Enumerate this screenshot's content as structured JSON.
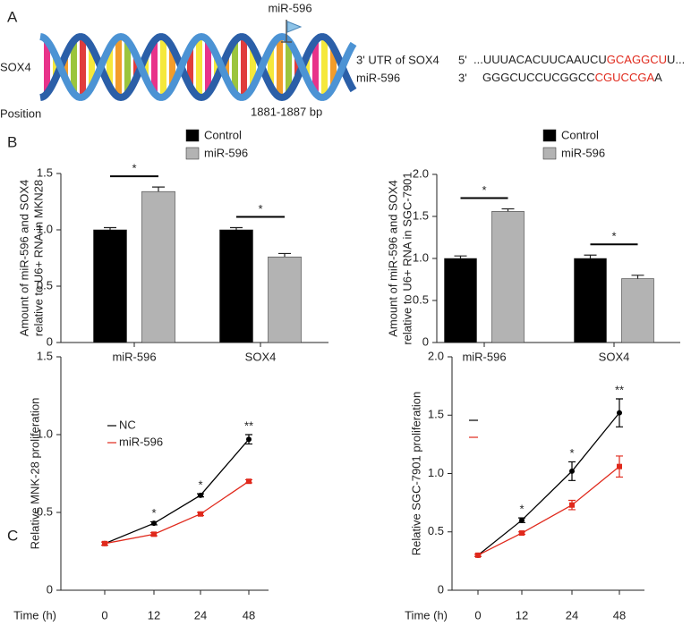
{
  "panel_labels": [
    "A",
    "B",
    "C"
  ],
  "panel_a": {
    "mirna_marker": "miR-596",
    "gene": "SOX4",
    "position_label": "Position",
    "position": "1881-1887 bp",
    "utr_label": "3' UTR of SOX4",
    "utr_end": "5'",
    "utr_seq": [
      "...UUUACACUUCAAUCU",
      "GCAGGCU",
      "U..."
    ],
    "mirna_label": "miR-596",
    "mirna_end": "3'",
    "mirna_seq": [
      "GGGCUCCUCGGCC",
      "CGUCCGA",
      "A"
    ]
  },
  "chart_data": [
    {
      "type": "bar",
      "ylabel": [
        "Amount of miR-596 and SOX4",
        "relative to U6+ RNA in MKN28"
      ],
      "categories": [
        "miR-596",
        "SOX4"
      ],
      "series": [
        {
          "name": "Control",
          "color": "#000000",
          "values": [
            1.0,
            1.0
          ],
          "errors": [
            0.02,
            0.02
          ]
        },
        {
          "name": "miR-596",
          "color": "#b3b3b3",
          "values": [
            1.34,
            0.76
          ],
          "errors": [
            0.04,
            0.03
          ]
        }
      ],
      "significance": [
        "*",
        "*"
      ],
      "ylim": [
        0,
        1.5
      ],
      "yticks": [
        0,
        0.5,
        {
          "value": 1,
          "label": "1.0"
        },
        1.5
      ]
    },
    {
      "type": "bar",
      "ylabel": [
        "Amount of miR-596 and SOX4",
        "relative to U6+ RNA in SGC-7901"
      ],
      "categories": [
        "miR-596",
        "SOX4"
      ],
      "series": [
        {
          "name": "Control",
          "color": "#000000",
          "values": [
            1.0,
            1.0
          ],
          "errors": [
            0.03,
            0.04
          ]
        },
        {
          "name": "miR-596",
          "color": "#b3b3b3",
          "values": [
            1.56,
            0.76
          ],
          "errors": [
            0.03,
            0.04
          ]
        }
      ],
      "significance": [
        "*",
        "*"
      ],
      "ylim": [
        0,
        2
      ],
      "yticks": [
        0,
        0.5,
        {
          "value": 1,
          "label": "1.0"
        },
        1.5,
        {
          "value": 2,
          "label": "2.0"
        }
      ]
    },
    {
      "type": "line",
      "ylabel": [
        "Relative MNK-28 proliferation"
      ],
      "xlabel": "Time (h)",
      "categories": [
        "0",
        "12",
        "24",
        "48"
      ],
      "series": [
        {
          "name": "NC",
          "color": "#000000",
          "values": [
            0.3,
            0.43,
            0.61,
            0.97
          ],
          "errors": [
            0.01,
            0.01,
            0.01,
            0.03
          ]
        },
        {
          "name": "miR-596",
          "color": "#e0291c",
          "values": [
            0.3,
            0.36,
            0.49,
            0.7
          ],
          "errors": [
            0.01,
            0.01,
            0.01,
            0.01
          ]
        }
      ],
      "significance": [
        null,
        "*",
        "*",
        "**"
      ],
      "ylim": [
        0,
        1.5
      ],
      "yticks": [
        0,
        0.5,
        {
          "value": 1,
          "label": "1.0"
        },
        1.5
      ]
    },
    {
      "type": "line",
      "ylabel": [
        "Relative SGC-7901 proliferation"
      ],
      "xlabel": "Time (h)",
      "categories": [
        "0",
        "12",
        "24",
        "48"
      ],
      "series": [
        {
          "color": "#000000",
          "values": [
            0.3,
            0.6,
            1.02,
            1.52
          ],
          "errors": [
            0.01,
            0.02,
            0.08,
            0.12
          ]
        },
        {
          "color": "#e0291c",
          "values": [
            0.3,
            0.49,
            0.73,
            1.06
          ],
          "errors": [
            0.01,
            0.01,
            0.04,
            0.09
          ]
        }
      ],
      "significance": [
        null,
        "*",
        "*",
        "**"
      ],
      "ylim": [
        0,
        2
      ],
      "yticks": [
        0,
        0.5,
        {
          "value": 1,
          "label": "1.0"
        },
        1.5,
        {
          "value": 2,
          "label": "2.0"
        }
      ]
    }
  ]
}
